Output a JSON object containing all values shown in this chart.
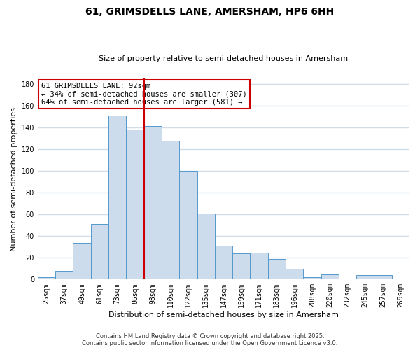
{
  "title": "61, GRIMSDELLS LANE, AMERSHAM, HP6 6HH",
  "subtitle": "Size of property relative to semi-detached houses in Amersham",
  "xlabel": "Distribution of semi-detached houses by size in Amersham",
  "ylabel": "Number of semi-detached properties",
  "bar_labels": [
    "25sqm",
    "37sqm",
    "49sqm",
    "61sqm",
    "73sqm",
    "86sqm",
    "98sqm",
    "110sqm",
    "122sqm",
    "135sqm",
    "147sqm",
    "159sqm",
    "171sqm",
    "183sqm",
    "196sqm",
    "208sqm",
    "220sqm",
    "232sqm",
    "245sqm",
    "257sqm",
    "269sqm"
  ],
  "bar_heights": [
    2,
    8,
    34,
    51,
    151,
    138,
    141,
    128,
    100,
    61,
    31,
    24,
    25,
    19,
    10,
    2,
    5,
    1,
    4,
    4,
    1
  ],
  "bar_color": "#ccdcec",
  "bar_edge_color": "#5599cc",
  "vline_x": 5.5,
  "vline_color": "#cc0000",
  "annotation_title": "61 GRIMSDELLS LANE: 92sqm",
  "annotation_line1": "← 34% of semi-detached houses are smaller (307)",
  "annotation_line2": "64% of semi-detached houses are larger (581) →",
  "annotation_box_color": "white",
  "annotation_box_edge_color": "#cc0000",
  "ylim": [
    0,
    185
  ],
  "yticks": [
    0,
    20,
    40,
    60,
    80,
    100,
    120,
    140,
    160,
    180
  ],
  "footer1": "Contains HM Land Registry data © Crown copyright and database right 2025.",
  "footer2": "Contains public sector information licensed under the Open Government Licence v3.0.",
  "bg_color": "#ffffff",
  "plot_bg_color": "#ffffff",
  "grid_color": "#d0dce8",
  "title_fontsize": 10,
  "subtitle_fontsize": 8,
  "ylabel_fontsize": 8,
  "xlabel_fontsize": 8,
  "tick_fontsize": 7,
  "annotation_fontsize": 7.5,
  "footer_fontsize": 6
}
